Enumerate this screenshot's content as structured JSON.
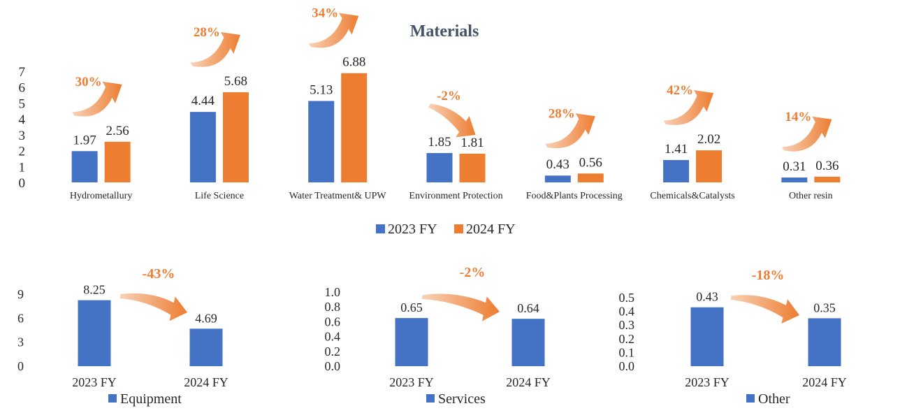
{
  "colors": {
    "series_2023": "#4472C4",
    "series_2024": "#ED7D31",
    "title": "#44546A",
    "growth_label": "#ED7D31",
    "text": "#262626"
  },
  "chart_data": [
    {
      "type": "bar",
      "title": "Materials",
      "categories": [
        "Hydrometallury",
        "Life Science",
        "Water Treatment& UPW",
        "Environment Protection",
        "Food&Plants Processing",
        "Chemicals&Catalysts",
        "Other resin"
      ],
      "series": [
        {
          "name": "2023 FY",
          "values": [
            1.97,
            4.44,
            5.13,
            1.85,
            0.43,
            1.41,
            0.31
          ]
        },
        {
          "name": "2024 FY",
          "values": [
            2.56,
            5.68,
            6.88,
            1.81,
            0.56,
            2.02,
            0.36
          ]
        }
      ],
      "growth_labels": [
        "30%",
        "28%",
        "34%",
        "-2%",
        "28%",
        "42%",
        "14%"
      ],
      "yticks": [
        "0",
        "1",
        "2",
        "3",
        "4",
        "5",
        "6",
        "7"
      ],
      "ylim": [
        0,
        7
      ],
      "legend": "bottom"
    },
    {
      "type": "bar",
      "categories": [
        "2023 FY",
        "2024 FY"
      ],
      "values": [
        8.25,
        4.69
      ],
      "series_name": "Equipment",
      "growth_label": "-43%",
      "yticks": [
        "0",
        "3",
        "6",
        "9"
      ],
      "ylim": [
        0,
        9
      ],
      "legend": "bottom"
    },
    {
      "type": "bar",
      "categories": [
        "2023 FY",
        "2024 FY"
      ],
      "values": [
        0.65,
        0.64
      ],
      "series_name": "Services",
      "growth_label": "-2%",
      "yticks": [
        "0.0",
        "0.2",
        "0.4",
        "0.6",
        "0.8",
        "1.0"
      ],
      "ylim": [
        0,
        1.0
      ],
      "legend": "bottom"
    },
    {
      "type": "bar",
      "categories": [
        "2023 FY",
        "2024 FY"
      ],
      "values": [
        0.43,
        0.35
      ],
      "series_name": "Other",
      "growth_label": "-18%",
      "yticks": [
        "0.0",
        "0.1",
        "0.2",
        "0.3",
        "0.4",
        "0.5"
      ],
      "ylim": [
        0,
        0.5
      ],
      "legend": "bottom"
    }
  ]
}
